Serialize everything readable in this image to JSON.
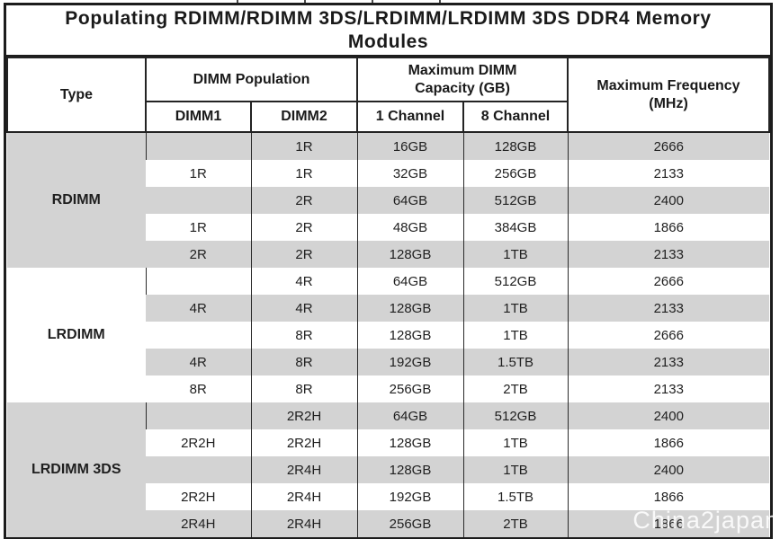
{
  "title_lines": [
    "Populating RDIMM/RDIMM 3DS/LRDIMM/LRDIMM 3DS DDR4 Memory",
    "Modules"
  ],
  "header": {
    "type": "Type",
    "dimm_population": "DIMM Population",
    "dimm1": "DIMM1",
    "dimm2": "DIMM2",
    "max_capacity_lines": [
      "Maximum DIMM",
      "Capacity (GB)"
    ],
    "channel1": "1 Channel",
    "channel8": "8 Channel",
    "max_frequency_lines": [
      "Maximum Frequency",
      "(MHz)"
    ]
  },
  "sections": [
    {
      "type": "RDIMM",
      "rows": [
        {
          "dimm1": "",
          "dimm2": "1R",
          "cap1": "16GB",
          "cap8": "128GB",
          "freq": "2666"
        },
        {
          "dimm1": "1R",
          "dimm2": "1R",
          "cap1": "32GB",
          "cap8": "256GB",
          "freq": "2133"
        },
        {
          "dimm1": "",
          "dimm2": "2R",
          "cap1": "64GB",
          "cap8": "512GB",
          "freq": "2400"
        },
        {
          "dimm1": "1R",
          "dimm2": "2R",
          "cap1": "48GB",
          "cap8": "384GB",
          "freq": "1866"
        },
        {
          "dimm1": "2R",
          "dimm2": "2R",
          "cap1": "128GB",
          "cap8": "1TB",
          "freq": "2133"
        }
      ]
    },
    {
      "type": "LRDIMM",
      "rows": [
        {
          "dimm1": "",
          "dimm2": "4R",
          "cap1": "64GB",
          "cap8": "512GB",
          "freq": "2666"
        },
        {
          "dimm1": "4R",
          "dimm2": "4R",
          "cap1": "128GB",
          "cap8": "1TB",
          "freq": "2133"
        },
        {
          "dimm1": "",
          "dimm2": "8R",
          "cap1": "128GB",
          "cap8": "1TB",
          "freq": "2666"
        },
        {
          "dimm1": "4R",
          "dimm2": "8R",
          "cap1": "192GB",
          "cap8": "1.5TB",
          "freq": "2133"
        },
        {
          "dimm1": "8R",
          "dimm2": "8R",
          "cap1": "256GB",
          "cap8": "2TB",
          "freq": "2133"
        }
      ]
    },
    {
      "type": "LRDIMM 3DS",
      "rows": [
        {
          "dimm1": "",
          "dimm2": "2R2H",
          "cap1": "64GB",
          "cap8": "512GB",
          "freq": "2400"
        },
        {
          "dimm1": "2R2H",
          "dimm2": "2R2H",
          "cap1": "128GB",
          "cap8": "1TB",
          "freq": "1866"
        },
        {
          "dimm1": "",
          "dimm2": "2R4H",
          "cap1": "128GB",
          "cap8": "1TB",
          "freq": "2400"
        },
        {
          "dimm1": "2R2H",
          "dimm2": "2R4H",
          "cap1": "192GB",
          "cap8": "1.5TB",
          "freq": "1866"
        },
        {
          "dimm1": "2R4H",
          "dimm2": "2R4H",
          "cap1": "256GB",
          "cap8": "2TB",
          "freq": "1866"
        }
      ]
    }
  ],
  "watermark": "China2japan",
  "colors": {
    "row_shade": "#d3d3d3",
    "border": "#1c1c1c",
    "text": "#1a1a1a",
    "watermark": "#ffffff"
  }
}
